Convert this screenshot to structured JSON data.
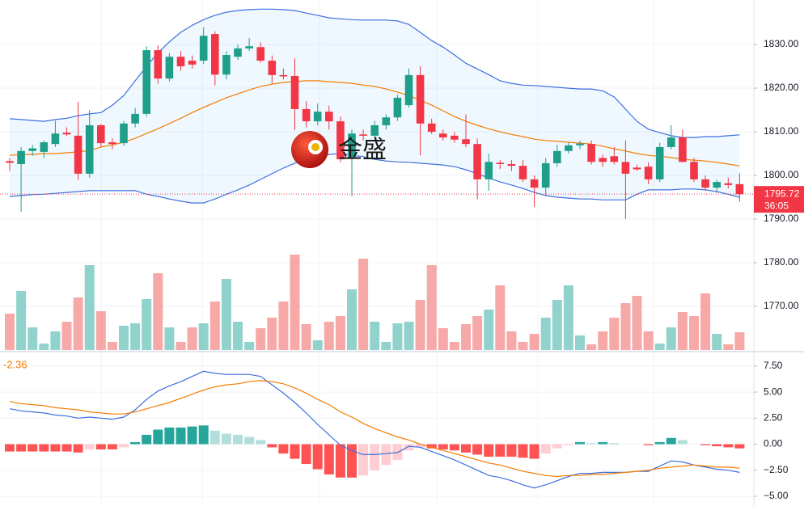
{
  "chart_data": [
    {
      "type": "candlestick",
      "watermark": "金盛",
      "ylim": [
        1760,
        1840.2
      ],
      "yticks": [
        {
          "value": 1830,
          "label": "1830.00"
        },
        {
          "value": 1820,
          "label": "1820.00"
        },
        {
          "value": 1810,
          "label": "1810.00"
        },
        {
          "value": 1800,
          "label": "1800.00"
        },
        {
          "value": 1790,
          "label": "1790.00"
        },
        {
          "value": 1780,
          "label": "1780.00"
        },
        {
          "value": 1770,
          "label": "1770.00"
        }
      ],
      "grid": true,
      "up_color": "#1f9e89",
      "down_color": "#f23645",
      "last_price": 1795.72,
      "countdown": "36:05",
      "open": [
        1803.3,
        1802.6,
        1805.6,
        1805.4,
        1807.2,
        1809.8,
        1809.1,
        1800.4,
        1811.5,
        1807.6,
        1807.4,
        1811.9,
        1814.1,
        1828.7,
        1822.2,
        1827.2,
        1826.3,
        1826.3,
        1832.4,
        1823.1,
        1827.2,
        1829.1,
        1829.4,
        1826.3,
        1823.0,
        1822.8,
        1815.2,
        1812.4,
        1814.6,
        1812.4,
        1804.1,
        1809.4,
        1809.1,
        1811.5,
        1813.3,
        1816.1,
        1823.0,
        1811.9,
        1809.6,
        1809.1,
        1808.3,
        1807.2,
        1799.1,
        1802.9,
        1802.6,
        1802.2,
        1799.1,
        1797.2,
        1802.8,
        1805.6,
        1806.9,
        1807.2,
        1804.0,
        1804.4,
        1803.1,
        1801.8,
        1802.0,
        1799.1,
        1806.5,
        1808.7,
        1803.1,
        1799.1,
        1797.2,
        1798.2,
        1798.0
      ],
      "high": [
        1804.0,
        1806.5,
        1807.0,
        1808.0,
        1812.5,
        1811.0,
        1816.9,
        1815.0,
        1811.8,
        1808.5,
        1812.5,
        1815.5,
        1829.6,
        1829.8,
        1828.0,
        1828.5,
        1827.5,
        1834.0,
        1833.0,
        1828.5,
        1830.0,
        1831.5,
        1830.5,
        1827.5,
        1824.5,
        1826.8,
        1817.0,
        1816.5,
        1816.0,
        1813.5,
        1810.5,
        1810.5,
        1812.5,
        1814.0,
        1818.5,
        1824.5,
        1825.0,
        1813.0,
        1810.5,
        1810.0,
        1814.0,
        1808.5,
        1805.0,
        1803.5,
        1803.5,
        1803.5,
        1800.0,
        1804.0,
        1807.0,
        1807.5,
        1808.0,
        1808.0,
        1804.8,
        1806.5,
        1808.0,
        1802.5,
        1803.0,
        1807.5,
        1811.5,
        1810.5,
        1804.0,
        1800.0,
        1799.0,
        1799.5,
        1800.5
      ],
      "low": [
        1801.0,
        1791.7,
        1804.5,
        1804.0,
        1806.5,
        1809.0,
        1799.0,
        1799.5,
        1806.5,
        1806.0,
        1806.8,
        1811.0,
        1813.5,
        1821.0,
        1821.5,
        1824.0,
        1824.5,
        1825.5,
        1820.6,
        1822.0,
        1826.5,
        1828.5,
        1825.8,
        1821.0,
        1822.0,
        1810.4,
        1811.0,
        1811.5,
        1810.5,
        1803.0,
        1795.2,
        1808.0,
        1808.5,
        1810.5,
        1812.5,
        1815.5,
        1804.6,
        1809.5,
        1808.0,
        1807.5,
        1806.5,
        1794.5,
        1796.5,
        1801.5,
        1801.0,
        1798.5,
        1792.8,
        1795.5,
        1802.0,
        1805.0,
        1806.0,
        1802.5,
        1802.0,
        1802.5,
        1790.0,
        1801.0,
        1798.0,
        1798.5,
        1806.0,
        1803.0,
        1798.5,
        1796.5,
        1796.0,
        1797.0,
        1794.0
      ],
      "close": [
        1802.9,
        1805.6,
        1806.2,
        1807.6,
        1809.6,
        1809.4,
        1800.4,
        1811.5,
        1807.4,
        1807.2,
        1811.9,
        1814.1,
        1828.7,
        1822.2,
        1827.2,
        1825.0,
        1825.4,
        1832.0,
        1823.1,
        1827.6,
        1829.1,
        1829.6,
        1826.3,
        1823.0,
        1822.7,
        1815.2,
        1812.4,
        1814.6,
        1812.4,
        1803.7,
        1809.6,
        1809.1,
        1811.5,
        1813.3,
        1817.8,
        1823.0,
        1811.9,
        1810.0,
        1808.7,
        1808.2,
        1807.2,
        1799.1,
        1803.1,
        1802.6,
        1802.2,
        1799.1,
        1797.2,
        1802.8,
        1805.6,
        1806.9,
        1807.3,
        1803.1,
        1803.1,
        1803.1,
        1800.4,
        1801.4,
        1799.1,
        1806.5,
        1808.7,
        1803.1,
        1799.1,
        1797.2,
        1798.5,
        1797.8,
        1795.7
      ],
      "bands": {
        "fill": "rgba(33,150,243,0.07)",
        "upper": {
          "color": "#3f6fe0",
          "values": [
            1813.0,
            1812.8,
            1812.6,
            1812.4,
            1812.8,
            1813.1,
            1813.7,
            1814.1,
            1814.4,
            1816.1,
            1818.3,
            1821.7,
            1825.0,
            1828.1,
            1830.6,
            1832.8,
            1834.4,
            1835.7,
            1836.7,
            1837.4,
            1837.8,
            1838.0,
            1838.1,
            1838.1,
            1838.0,
            1837.8,
            1837.2,
            1836.7,
            1836.1,
            1835.9,
            1835.7,
            1835.6,
            1835.6,
            1835.6,
            1835.4,
            1834.6,
            1832.8,
            1830.9,
            1829.4,
            1827.6,
            1825.7,
            1824.4,
            1823.1,
            1821.7,
            1821.1,
            1820.7,
            1820.6,
            1820.4,
            1820.2,
            1820.0,
            1819.8,
            1819.8,
            1819.4,
            1818.0,
            1815.2,
            1812.4,
            1810.6,
            1809.8,
            1809.1,
            1808.7,
            1808.7,
            1808.9,
            1808.9,
            1809.1,
            1809.3
          ]
        },
        "middle": {
          "color": "#f57c00",
          "values": [
            1804.6,
            1804.8,
            1804.8,
            1805.0,
            1805.0,
            1805.2,
            1805.4,
            1805.7,
            1806.5,
            1807.0,
            1807.6,
            1808.5,
            1809.6,
            1810.7,
            1811.9,
            1813.1,
            1814.4,
            1815.6,
            1816.7,
            1817.8,
            1818.7,
            1819.6,
            1820.4,
            1820.9,
            1821.3,
            1821.5,
            1821.7,
            1821.7,
            1821.5,
            1821.3,
            1821.1,
            1820.7,
            1820.4,
            1819.8,
            1819.1,
            1818.3,
            1817.2,
            1816.1,
            1814.8,
            1813.5,
            1812.4,
            1811.5,
            1810.7,
            1810.0,
            1809.4,
            1808.9,
            1808.3,
            1808.0,
            1807.8,
            1807.6,
            1807.4,
            1807.2,
            1806.7,
            1806.1,
            1805.6,
            1805.0,
            1804.6,
            1804.4,
            1804.1,
            1803.7,
            1803.5,
            1803.3,
            1803.0,
            1802.6,
            1802.2
          ]
        },
        "lower": {
          "color": "#3f6fe0",
          "values": [
            1795.2,
            1795.4,
            1795.6,
            1795.7,
            1795.9,
            1796.1,
            1796.3,
            1796.5,
            1796.5,
            1796.5,
            1796.5,
            1796.5,
            1795.7,
            1795.2,
            1794.6,
            1794.1,
            1793.7,
            1793.7,
            1794.6,
            1795.7,
            1796.7,
            1797.8,
            1799.1,
            1800.4,
            1801.7,
            1802.8,
            1803.9,
            1804.4,
            1804.8,
            1805.0,
            1804.6,
            1804.3,
            1803.7,
            1803.3,
            1803.1,
            1803.0,
            1802.8,
            1802.6,
            1802.4,
            1802.0,
            1801.3,
            1800.4,
            1799.4,
            1798.5,
            1797.8,
            1797.0,
            1796.1,
            1795.4,
            1795.0,
            1794.8,
            1794.6,
            1794.6,
            1794.4,
            1794.4,
            1794.4,
            1795.7,
            1796.7,
            1796.7,
            1796.7,
            1796.9,
            1796.9,
            1796.7,
            1796.3,
            1795.7,
            1795.0
          ]
        }
      },
      "volume": {
        "up_color": "rgba(38,166,154,0.5)",
        "down_color": "rgba(239,83,80,0.5)",
        "values": [
          45,
          73,
          28,
          8,
          23,
          35,
          65,
          105,
          48,
          10,
          30,
          33,
          63,
          95,
          28,
          10,
          28,
          33,
          60,
          88,
          35,
          10,
          27,
          40,
          60,
          118,
          32,
          12,
          35,
          42,
          75,
          113,
          35,
          10,
          33,
          35,
          62,
          105,
          27,
          10,
          32,
          42,
          50,
          80,
          23,
          10,
          20,
          40,
          62,
          80,
          18,
          7,
          23,
          40,
          58,
          67,
          23,
          8,
          28,
          47,
          42,
          70,
          20,
          7,
          22
        ]
      }
    },
    {
      "type": "macd",
      "ylim": [
        -5.93,
        8.73
      ],
      "yticks": [
        {
          "value": 7.5,
          "label": "7.50"
        },
        {
          "value": 5,
          "label": "5.00"
        },
        {
          "value": 2.5,
          "label": "2.50"
        },
        {
          "value": 0,
          "label": "0.00"
        },
        {
          "value": -2.5,
          "label": "−2.50"
        },
        {
          "value": -5,
          "label": "−5.00"
        }
      ],
      "grid": true,
      "last_value": -2.36,
      "histogram_colors": [
        "#26a69a",
        "#b2dfdb",
        "#ff5252",
        "#ffcdd2"
      ],
      "histogram": [
        -0.7,
        -0.7,
        -0.7,
        -0.7,
        -0.7,
        -0.7,
        -0.8,
        -0.5,
        -0.5,
        -0.5,
        -0.3,
        0.2,
        0.9,
        1.4,
        1.6,
        1.6,
        1.7,
        1.8,
        1.3,
        1.0,
        0.9,
        0.7,
        0.4,
        -0.3,
        -0.9,
        -1.4,
        -1.9,
        -2.4,
        -2.9,
        -3.2,
        -3.2,
        -3.0,
        -2.5,
        -2.0,
        -1.5,
        -0.6,
        -0.3,
        -0.4,
        -0.5,
        -0.6,
        -0.8,
        -1.0,
        -1.2,
        -1.2,
        -1.2,
        -1.3,
        -1.4,
        -0.9,
        -0.4,
        -0.1,
        0.2,
        0.1,
        0.2,
        0.1,
        0.0,
        0.0,
        -0.1,
        0.2,
        0.6,
        0.4,
        0.0,
        -0.1,
        -0.2,
        -0.3,
        -0.4
      ],
      "macd": {
        "color": "#3f6fe0",
        "values": [
          3.4,
          3.2,
          3.1,
          3.0,
          2.8,
          2.7,
          2.5,
          2.6,
          2.5,
          2.4,
          2.6,
          3.3,
          4.3,
          5.1,
          5.6,
          6.0,
          6.5,
          7.0,
          6.8,
          6.7,
          6.7,
          6.7,
          6.5,
          5.7,
          4.9,
          4.0,
          3.0,
          1.9,
          0.9,
          -0.1,
          -0.6,
          -1.0,
          -1.0,
          -0.9,
          -0.8,
          -0.2,
          -0.3,
          -0.7,
          -1.1,
          -1.5,
          -2.0,
          -2.5,
          -3.0,
          -3.2,
          -3.5,
          -3.9,
          -4.2,
          -3.9,
          -3.5,
          -3.1,
          -2.8,
          -2.8,
          -2.7,
          -2.7,
          -2.7,
          -2.6,
          -2.6,
          -2.1,
          -1.6,
          -1.7,
          -2.0,
          -2.2,
          -2.4,
          -2.5,
          -2.7
        ]
      },
      "signal": {
        "color": "#f57c00",
        "values": [
          4.1,
          3.9,
          3.8,
          3.7,
          3.5,
          3.4,
          3.3,
          3.1,
          3.0,
          2.9,
          2.9,
          3.1,
          3.4,
          3.7,
          4.0,
          4.4,
          4.8,
          5.2,
          5.5,
          5.7,
          5.8,
          6.0,
          6.1,
          6.0,
          5.8,
          5.4,
          4.9,
          4.3,
          3.8,
          3.1,
          2.6,
          2.0,
          1.5,
          1.1,
          0.7,
          0.4,
          0.0,
          -0.3,
          -0.6,
          -0.9,
          -1.2,
          -1.5,
          -1.8,
          -2.0,
          -2.3,
          -2.6,
          -2.8,
          -3.0,
          -3.1,
          -3.0,
          -3.0,
          -2.9,
          -2.9,
          -2.8,
          -2.7,
          -2.6,
          -2.5,
          -2.3,
          -2.2,
          -2.1,
          -2.0,
          -2.1,
          -2.2,
          -2.2,
          -2.3
        ]
      }
    }
  ]
}
